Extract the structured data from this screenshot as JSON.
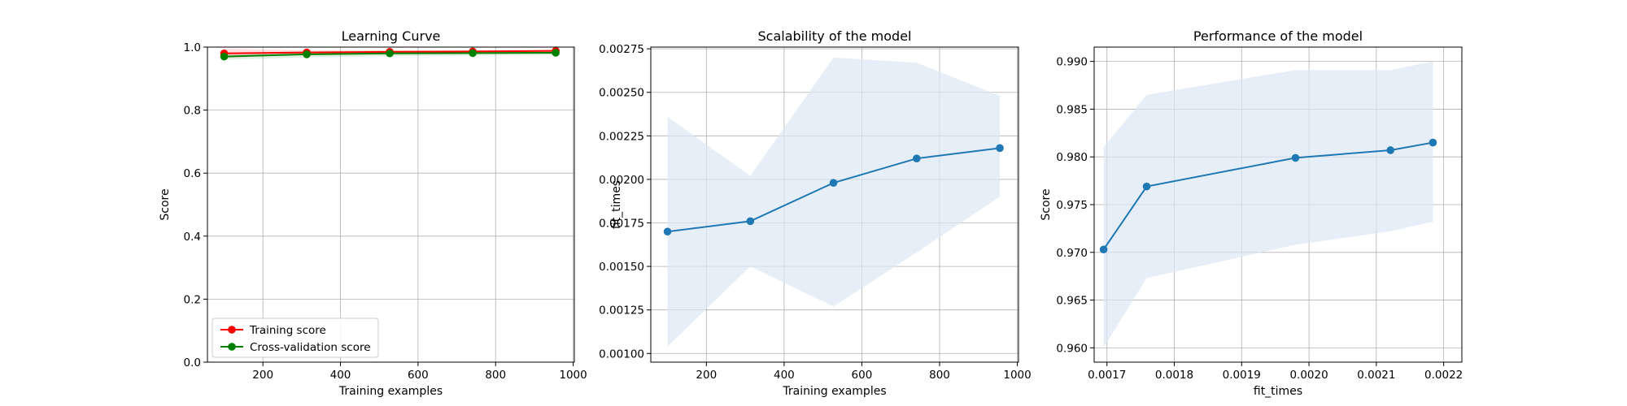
{
  "colors": {
    "training": "#ff0000",
    "cv": "#008000",
    "line": "#1f77b4",
    "band": "#dce8f4",
    "grid": "#b0b0b0"
  },
  "chart_data": [
    {
      "type": "line",
      "title": "Learning Curve",
      "xlabel": "Training examples",
      "ylabel": "Score",
      "xlim": [
        57,
        1003
      ],
      "ylim": [
        0.0,
        1.0
      ],
      "xticks": [
        200,
        400,
        600,
        800,
        1000
      ],
      "xtick_labels": [
        "200",
        "400",
        "600",
        "800",
        "1000"
      ],
      "yticks": [
        0.0,
        0.2,
        0.4,
        0.6,
        0.8,
        1.0
      ],
      "ytick_labels": [
        "0.0",
        "0.2",
        "0.4",
        "0.6",
        "0.8",
        "1.0"
      ],
      "grid": true,
      "legend_position": "lower-left",
      "x": [
        100,
        313,
        527,
        741,
        955
      ],
      "series": [
        {
          "name": "Training score",
          "color": "#ff0000",
          "values": [
            0.98,
            0.983,
            0.985,
            0.986,
            0.988
          ],
          "band_low": [
            0.965,
            0.977,
            0.981,
            0.983,
            0.985
          ],
          "band_high": [
            0.995,
            0.99,
            0.99,
            0.99,
            0.991
          ]
        },
        {
          "name": "Cross-validation score",
          "color": "#008000",
          "values": [
            0.97,
            0.977,
            0.98,
            0.981,
            0.982
          ],
          "band_low": [
            0.96,
            0.967,
            0.971,
            0.973,
            0.975
          ],
          "band_high": [
            0.981,
            0.987,
            0.989,
            0.989,
            0.99
          ]
        }
      ]
    },
    {
      "type": "line",
      "title": "Scalability of the model",
      "xlabel": "Training examples",
      "ylabel": "fit_times",
      "xlim": [
        57,
        1003
      ],
      "ylim": [
        0.00095,
        0.00276
      ],
      "xticks": [
        200,
        400,
        600,
        800,
        1000
      ],
      "xtick_labels": [
        "200",
        "400",
        "600",
        "800",
        "1000"
      ],
      "yticks": [
        0.001,
        0.00125,
        0.0015,
        0.00175,
        0.002,
        0.00225,
        0.0025,
        0.00275
      ],
      "ytick_labels": [
        "0.00100",
        "0.00125",
        "0.00150",
        "0.00175",
        "0.00200",
        "0.00225",
        "0.00250",
        "0.00275"
      ],
      "grid": true,
      "x": [
        100,
        313,
        527,
        741,
        955
      ],
      "series": [
        {
          "color": "#1f77b4",
          "values": [
            0.0017,
            0.00176,
            0.00198,
            0.00212,
            0.00218
          ],
          "band_low": [
            0.00104,
            0.0015,
            0.00127,
            0.00158,
            0.0019
          ],
          "band_high": [
            0.00236,
            0.00202,
            0.0027,
            0.00267,
            0.00248
          ]
        }
      ]
    },
    {
      "type": "line",
      "title": "Performance of the model",
      "xlabel": "fit_times",
      "ylabel": "Score",
      "xlim": [
        0.001681,
        0.002227
      ],
      "ylim": [
        0.9585,
        0.9915
      ],
      "xticks": [
        0.0017,
        0.0018,
        0.0019,
        0.002,
        0.0021,
        0.0022
      ],
      "xtick_labels": [
        "0.0017",
        "0.0018",
        "0.0019",
        "0.0020",
        "0.0021",
        "0.0022"
      ],
      "yticks": [
        0.96,
        0.965,
        0.97,
        0.975,
        0.98,
        0.985,
        0.99
      ],
      "ytick_labels": [
        "0.960",
        "0.965",
        "0.970",
        "0.975",
        "0.980",
        "0.985",
        "0.990"
      ],
      "grid": true,
      "x": [
        0.001695,
        0.001759,
        0.00198,
        0.002121,
        0.002184
      ],
      "series": [
        {
          "color": "#1f77b4",
          "values": [
            0.9703,
            0.9769,
            0.9799,
            0.9807,
            0.9815
          ],
          "band_low": [
            0.96,
            0.9673,
            0.9708,
            0.9722,
            0.9732
          ],
          "band_high": [
            0.981,
            0.9865,
            0.9891,
            0.9891,
            0.99
          ]
        }
      ]
    }
  ]
}
